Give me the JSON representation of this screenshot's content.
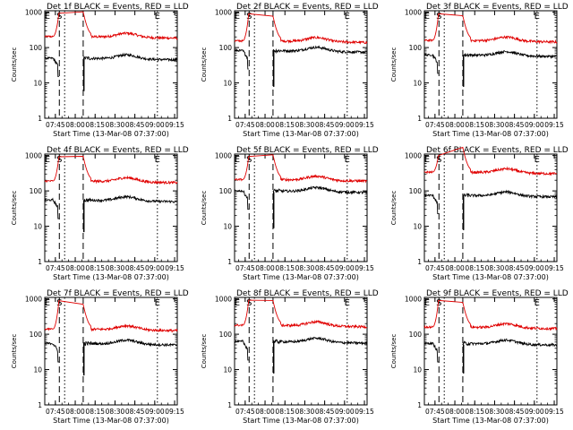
{
  "chart_data": {
    "type": "line",
    "panels": [
      {
        "title": "Det 1f BLACK = Events, RED = LLD",
        "red_base": 205,
        "black_base": 50,
        "dip": 6
      },
      {
        "title": "Det 2f BLACK = Events, RED = LLD",
        "red_base": 155,
        "black_base": 82,
        "dip": 8
      },
      {
        "title": "Det 3f BLACK = Events, RED = LLD",
        "red_base": 160,
        "black_base": 62,
        "dip": 8
      },
      {
        "title": "Det 4f BLACK = Events, RED = LLD",
        "red_base": 190,
        "black_base": 55,
        "dip": 7
      },
      {
        "title": "Det 5f BLACK = Events, RED = LLD",
        "red_base": 210,
        "black_base": 100,
        "dip": 9
      },
      {
        "title": "Det 6f BLACK = Events, RED = LLD",
        "red_base": 340,
        "black_base": 75,
        "dip": 8
      },
      {
        "title": "Det 7f BLACK = Events, RED = LLD",
        "red_base": 140,
        "black_base": 55,
        "dip": 7
      },
      {
        "title": "Det 8f BLACK = Events, RED = LLD",
        "red_base": 180,
        "black_base": 62,
        "dip": 8
      },
      {
        "title": "Det 9f BLACK = Events, RED = LLD",
        "red_base": 160,
        "black_base": 55,
        "dip": 8
      }
    ],
    "series": [
      {
        "name": "Events",
        "color": "#000000"
      },
      {
        "name": "LLD",
        "color": "#e00000"
      }
    ],
    "xlabel": "Start Time (13-Mar-08 07:37:00)",
    "ylabel": "Counts/sec",
    "x_ticks": [
      "07:45",
      "08:00",
      "08:15",
      "08:30",
      "08:45",
      "09:00",
      "09:15"
    ],
    "x_tick_minutes": [
      8,
      23,
      38,
      53,
      68,
      83,
      98
    ],
    "xlim_minutes": [
      0,
      100
    ],
    "y_ticks": [
      "1",
      "10",
      "100",
      "1000"
    ],
    "y_scale": "log",
    "ylim": [
      1,
      1100
    ],
    "markers": [
      {
        "label": "E",
        "minute": 2,
        "line": "none"
      },
      {
        "label": "S",
        "minute": 11,
        "line": "dashed"
      },
      {
        "label": "",
        "minute": 15,
        "line": "dotted"
      },
      {
        "label": "",
        "minute": 29,
        "line": "dashed"
      },
      {
        "label": "E",
        "minute": 85,
        "line": "dotted"
      }
    ],
    "saturation_window_minutes": [
      11,
      29
    ],
    "grid": false
  }
}
